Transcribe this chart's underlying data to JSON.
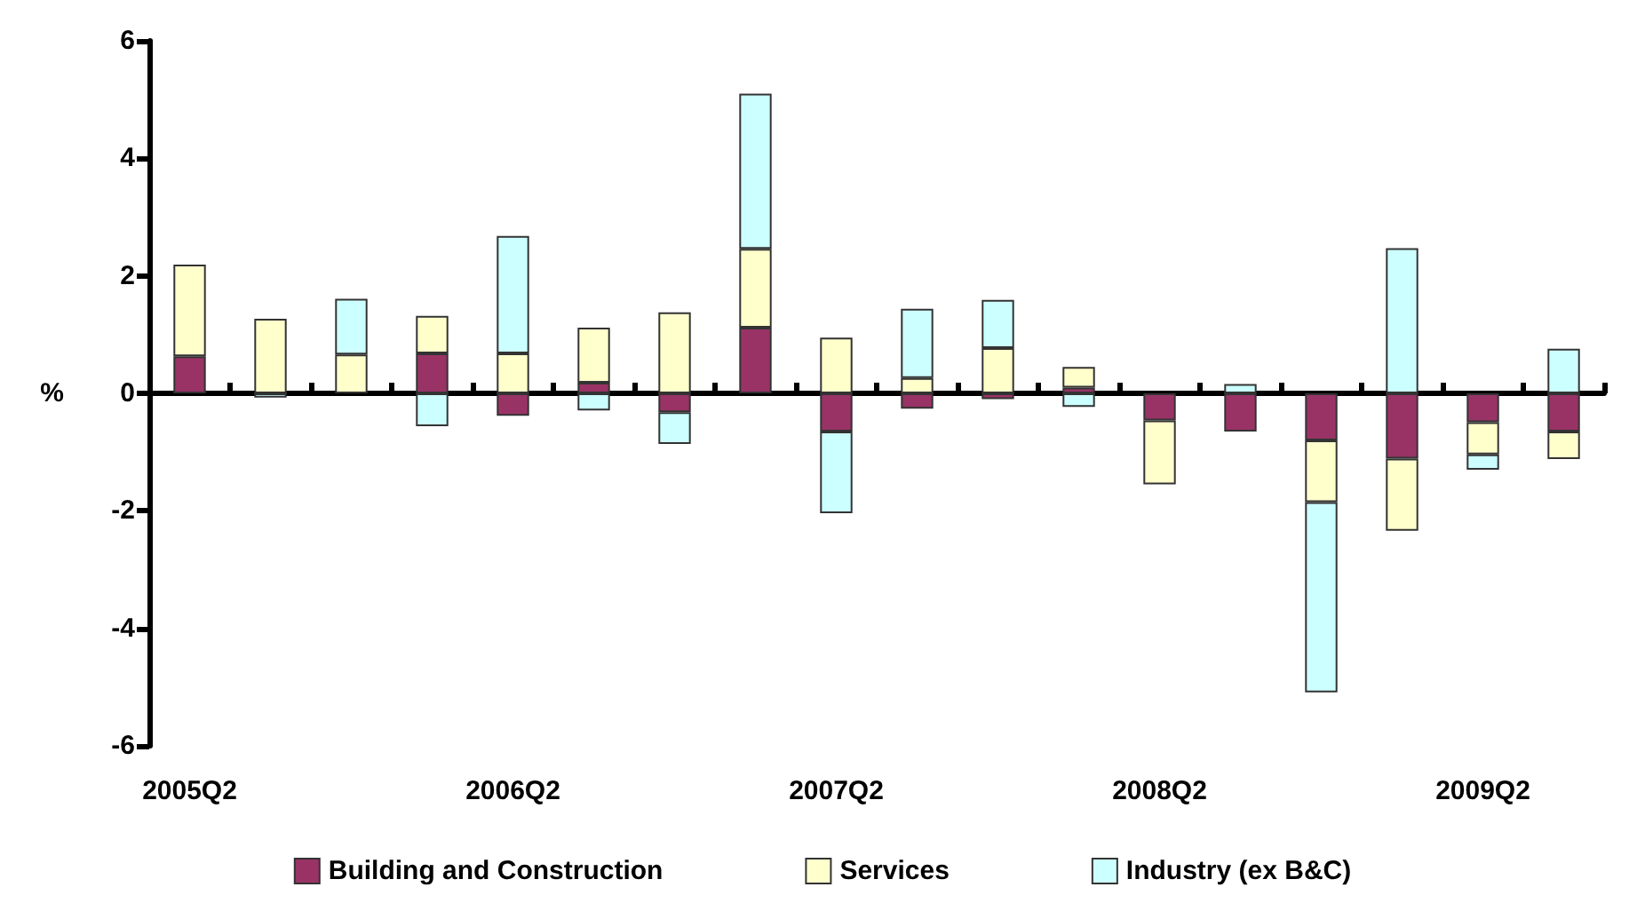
{
  "chart_data": {
    "type": "bar",
    "stacked": true,
    "ylabel": "%",
    "categories": [
      "2005Q2",
      null,
      null,
      null,
      "2006Q2",
      null,
      null,
      null,
      "2007Q2",
      null,
      null,
      null,
      "2008Q2",
      null,
      null,
      null,
      "2009Q2",
      null
    ],
    "series": [
      {
        "name": "Building and Construction",
        "color": "#993366",
        "values": [
          0.63,
          null,
          null,
          0.68,
          -0.38,
          0.18,
          -0.32,
          1.12,
          -0.65,
          -0.26,
          -0.1,
          0.1,
          -0.46,
          -0.65,
          -0.8,
          -1.11,
          -0.49,
          -0.65
        ]
      },
      {
        "name": "Services",
        "color": "#ffffcc",
        "values": [
          1.56,
          1.27,
          0.66,
          0.64,
          0.68,
          0.94,
          1.38,
          1.34,
          0.95,
          0.26,
          0.77,
          0.35,
          -1.09,
          null,
          -1.05,
          -1.23,
          -0.55,
          -0.47
        ]
      },
      {
        "name": "Industry (ex B&C)",
        "color": "#ccffff",
        "values": [
          null,
          -0.07,
          0.95,
          -0.56,
          2.0,
          -0.29,
          -0.54,
          2.64,
          -1.39,
          1.18,
          0.82,
          -0.23,
          null,
          0.16,
          -3.24,
          2.47,
          -0.26,
          0.76
        ]
      }
    ],
    "ylim": [
      -6,
      6
    ],
    "yticks": [
      -6,
      -4,
      -2,
      0,
      2,
      4,
      6
    ],
    "legend": "bottom"
  }
}
